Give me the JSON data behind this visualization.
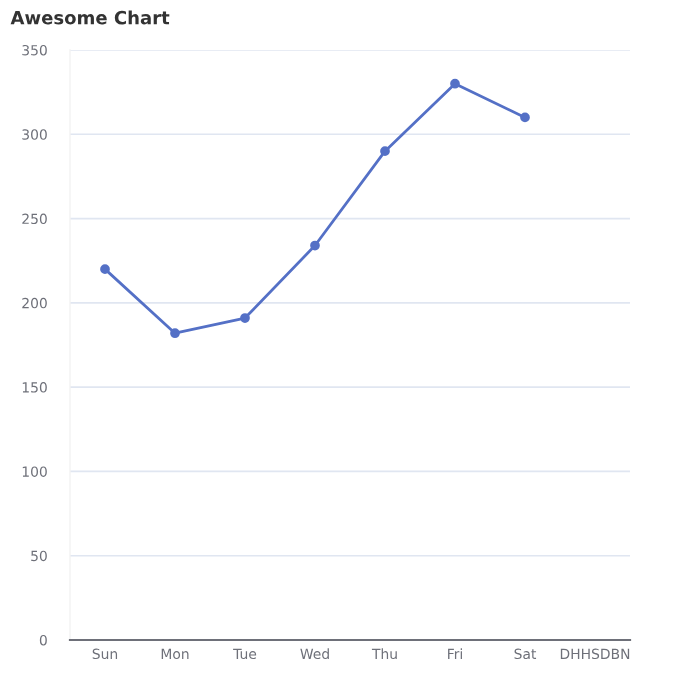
{
  "chart_data": {
    "type": "line",
    "title": "Awesome Chart",
    "categories": [
      "Sun",
      "Mon",
      "Tue",
      "Wed",
      "Thu",
      "Fri",
      "Sat",
      "DHHSDBN"
    ],
    "series": [
      {
        "color": "#5470c6",
        "values": [
          220,
          182,
          191,
          234,
          290,
          330,
          310,
          null
        ]
      }
    ],
    "ylim": [
      0,
      350
    ],
    "yticks": [
      0,
      50,
      100,
      150,
      200,
      250,
      300,
      350
    ],
    "grid": "y",
    "marker": "circle",
    "line_style": "solid"
  }
}
